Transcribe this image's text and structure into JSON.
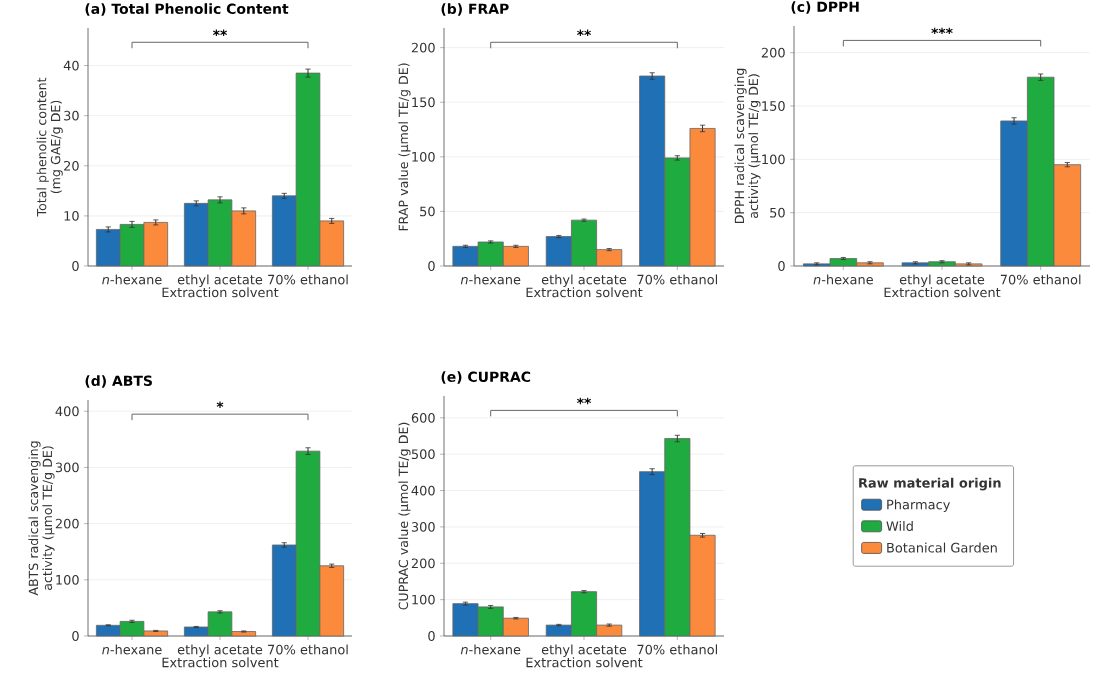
{
  "chart_data": [
    {
      "type": "bar",
      "title": "(a) Total Phenolic Content",
      "xlabel": "Extraction solvent",
      "ylabel": "Total phenolic content (mg GAE/g DE)",
      "categories": [
        "*n*-hexane",
        "ethyl acetate",
        "70% ethanol"
      ],
      "series": [
        {
          "color": "#1f70b5",
          "values": [
            7.3,
            12.5,
            14.0
          ],
          "errors": [
            0.5,
            0.5,
            0.5
          ]
        },
        {
          "color": "#1fab40",
          "values": [
            8.3,
            13.2,
            38.5
          ],
          "errors": [
            0.6,
            0.6,
            0.8
          ]
        },
        {
          "color": "#fb8a3c",
          "values": [
            8.7,
            11.0,
            9.0
          ],
          "errors": [
            0.5,
            0.6,
            0.5
          ]
        }
      ],
      "ylim": [
        0,
        47.5
      ],
      "yticks": [
        0,
        10,
        20,
        30,
        40
      ],
      "grid": "y",
      "annotations": [
        "**"
      ]
    },
    {
      "type": "bar",
      "title": "(b) FRAP",
      "xlabel": "Extraction solvent",
      "ylabel": "FRAP value (μmol TE/g DE)",
      "categories": [
        "*n*-hexane",
        "ethyl acetate",
        "70% ethanol"
      ],
      "series": [
        {
          "color": "#1f70b5",
          "values": [
            18,
            27,
            174
          ],
          "errors": [
            1,
            1,
            3
          ]
        },
        {
          "color": "#1fab40",
          "values": [
            22,
            42,
            99
          ],
          "errors": [
            1,
            1,
            2
          ]
        },
        {
          "color": "#fb8a3c",
          "values": [
            18,
            15,
            126
          ],
          "errors": [
            1,
            1,
            3
          ]
        }
      ],
      "ylim": [
        0,
        218
      ],
      "yticks": [
        0,
        50,
        100,
        150,
        200
      ],
      "grid": "y",
      "annotations": [
        "**"
      ]
    },
    {
      "type": "bar",
      "title": "(c) DPPH",
      "xlabel": "Extraction solvent",
      "ylabel": "DPPH radical scavenging activity (μmol TE/g DE)",
      "categories": [
        "*n*-hexane",
        "ethyl acetate",
        "70% ethanol"
      ],
      "series": [
        {
          "color": "#1f70b5",
          "values": [
            2,
            3,
            136
          ],
          "errors": [
            1,
            1,
            3
          ]
        },
        {
          "color": "#1fab40",
          "values": [
            7,
            4,
            177
          ],
          "errors": [
            1,
            1,
            3
          ]
        },
        {
          "color": "#fb8a3c",
          "values": [
            3,
            2,
            95
          ],
          "errors": [
            1,
            1,
            2
          ]
        }
      ],
      "ylim": [
        0,
        225
      ],
      "yticks": [
        0,
        50,
        100,
        150,
        200
      ],
      "grid": "y",
      "annotations": [
        "***"
      ]
    },
    {
      "type": "bar",
      "title": "(d) ABTS",
      "xlabel": "Extraction solvent",
      "ylabel": "ABTS radical scavenging activity (μmol TE/g DE)",
      "categories": [
        "*n*-hexane",
        "ethyl acetate",
        "70% ethanol"
      ],
      "series": [
        {
          "color": "#1f70b5",
          "values": [
            19,
            16,
            162
          ],
          "errors": [
            1,
            1,
            4
          ]
        },
        {
          "color": "#1fab40",
          "values": [
            26,
            43,
            329
          ],
          "errors": [
            2,
            2,
            6
          ]
        },
        {
          "color": "#fb8a3c",
          "values": [
            9,
            8,
            125
          ],
          "errors": [
            1,
            1,
            3
          ]
        }
      ],
      "ylim": [
        0,
        420
      ],
      "yticks": [
        0,
        100,
        200,
        300,
        400
      ],
      "grid": "y",
      "annotations": [
        "*"
      ]
    },
    {
      "type": "bar",
      "title": "(e) CUPRAC",
      "xlabel": "Extraction solvent",
      "ylabel": "CUPRAC value (μmol TE/g DE)",
      "categories": [
        "*n*-hexane",
        "ethyl acetate",
        "70% ethanol"
      ],
      "series": [
        {
          "name": "Pharmacy",
          "color": "#1f70b5",
          "values": [
            89,
            30,
            452
          ],
          "errors": [
            4,
            2,
            8
          ]
        },
        {
          "name": "Wild",
          "color": "#1fab40",
          "values": [
            80,
            122,
            543
          ],
          "errors": [
            4,
            3,
            9
          ]
        },
        {
          "name": "Botanical Garden",
          "color": "#fb8a3c",
          "values": [
            49,
            30,
            277
          ],
          "errors": [
            2,
            3,
            5
          ]
        }
      ],
      "ylim": [
        0,
        660
      ],
      "yticks": [
        0,
        100,
        200,
        300,
        400,
        500,
        600
      ],
      "grid": "y",
      "annotations": [
        "**"
      ],
      "legend": "right",
      "legend_title": "Raw material origin"
    }
  ]
}
